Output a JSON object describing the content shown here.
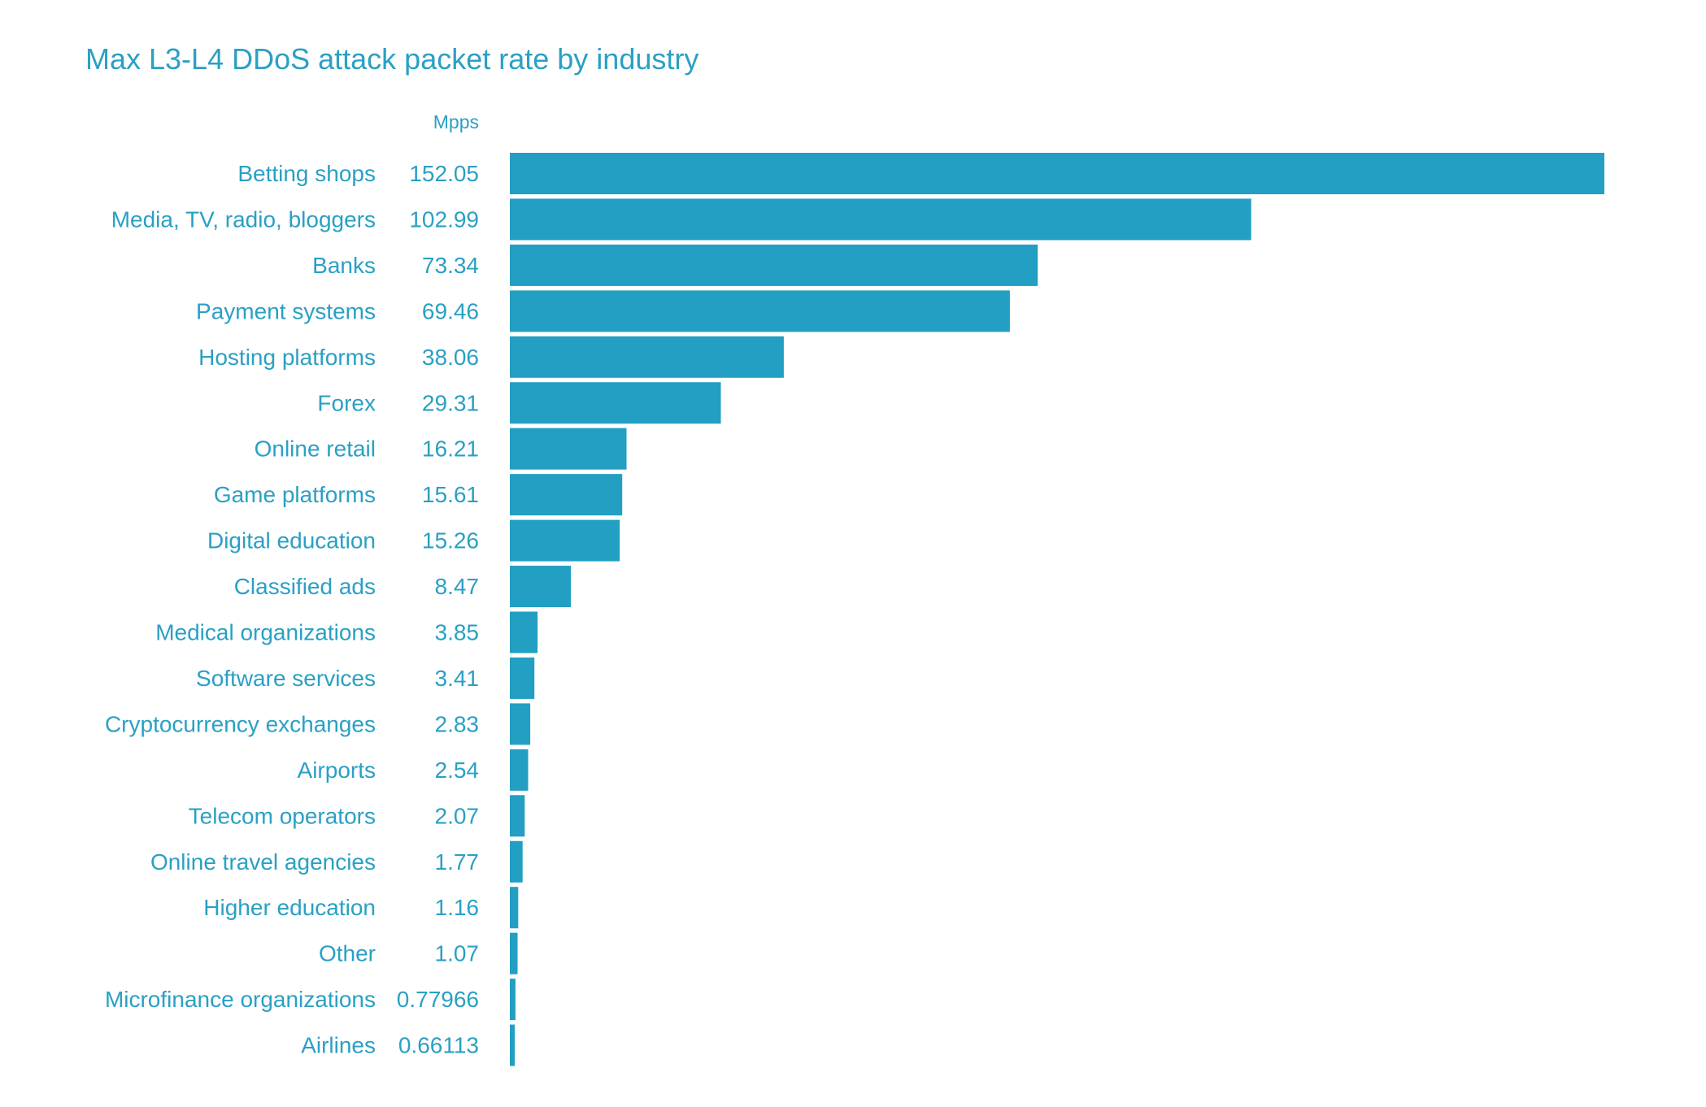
{
  "chart_data": {
    "type": "bar",
    "orientation": "horizontal",
    "title": "Max L3-L4 DDoS attack packet rate by industry",
    "unit": "Mpps",
    "xlabel": "",
    "ylabel": "",
    "xlim": [
      0,
      152.05
    ],
    "grid": false,
    "legend": "none",
    "bar_color": "#229fc3",
    "text_color": "#2aa0c4",
    "categories": [
      "Betting shops",
      "Media, TV, radio, bloggers",
      "Banks",
      "Payment systems",
      "Hosting platforms",
      "Forex",
      "Online retail",
      "Game platforms",
      "Digital education",
      "Classified ads",
      "Medical organizations",
      "Software services",
      "Cryptocurrency exchanges",
      "Airports",
      "Telecom operators",
      "Online travel agencies",
      "Higher education",
      "Other",
      "Microfinance organizations",
      "Airlines"
    ],
    "values": [
      152.05,
      102.99,
      73.34,
      69.46,
      38.06,
      29.31,
      16.21,
      15.61,
      15.26,
      8.47,
      3.85,
      3.41,
      2.83,
      2.54,
      2.07,
      1.77,
      1.16,
      1.07,
      0.77966,
      0.66113
    ],
    "value_labels": [
      "152.05",
      "102.99",
      "73.34",
      "69.46",
      "38.06",
      "29.31",
      "16.21",
      "15.61",
      "15.26",
      "8.47",
      "3.85",
      "3.41",
      "2.83",
      "2.54",
      "2.07",
      "1.77",
      "1.16",
      "1.07",
      "0.77966",
      "0.66113"
    ]
  }
}
